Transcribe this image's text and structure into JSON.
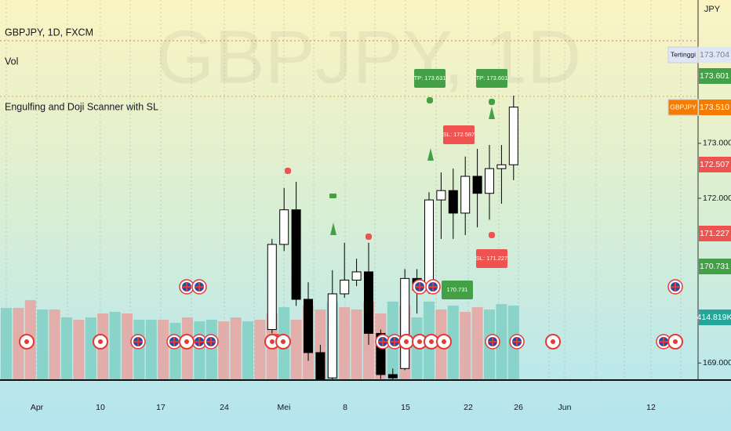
{
  "header": {
    "symbol": "GBPJPY, 1D, FXCM",
    "volume_indicator": "Vol",
    "indicator": "Engulfing and Doji Scanner with SL",
    "watermark": "GBPJPY, 1D"
  },
  "chart_data": {
    "type": "candlestick",
    "candles": [
      {
        "o": 169.61,
        "h": 171.26,
        "l": 169.54,
        "c": 171.16
      },
      {
        "o": 171.16,
        "h": 172.19,
        "l": 171.04,
        "c": 171.79
      },
      {
        "o": 171.79,
        "h": 172.3,
        "l": 170.04,
        "c": 170.16
      },
      {
        "o": 170.16,
        "h": 170.47,
        "l": 169.04,
        "c": 169.19
      },
      {
        "o": 169.19,
        "h": 169.33,
        "l": 168.69,
        "c": 168.71
      },
      {
        "o": 168.73,
        "h": 170.69,
        "l": 168.69,
        "c": 170.26
      },
      {
        "o": 170.26,
        "h": 171.19,
        "l": 170.19,
        "c": 170.51
      },
      {
        "o": 170.51,
        "h": 170.9,
        "l": 170.4,
        "c": 170.66
      },
      {
        "o": 170.66,
        "h": 171.19,
        "l": 169.33,
        "c": 169.54
      },
      {
        "o": 169.54,
        "h": 169.61,
        "l": 168.71,
        "c": 168.79
      },
      {
        "o": 168.79,
        "h": 168.9,
        "l": 168.69,
        "c": 168.73
      },
      {
        "o": 168.9,
        "h": 170.71,
        "l": 168.87,
        "c": 170.54
      },
      {
        "o": 170.54,
        "h": 170.71,
        "l": 169.9,
        "c": 170.33
      },
      {
        "o": 170.33,
        "h": 172.11,
        "l": 170.26,
        "c": 171.97
      },
      {
        "o": 171.97,
        "h": 172.47,
        "l": 171.26,
        "c": 172.14
      },
      {
        "o": 172.14,
        "h": 172.54,
        "l": 171.26,
        "c": 171.73
      },
      {
        "o": 171.73,
        "h": 172.76,
        "l": 171.33,
        "c": 172.4
      },
      {
        "o": 172.4,
        "h": 172.9,
        "l": 171.47,
        "c": 172.09
      },
      {
        "o": 172.09,
        "h": 172.97,
        "l": 171.61,
        "c": 172.54
      },
      {
        "o": 172.54,
        "h": 172.97,
        "l": 171.9,
        "c": 172.61
      },
      {
        "o": 172.61,
        "h": 173.87,
        "l": 172.33,
        "c": 173.66
      }
    ],
    "up_color": "#ffffff",
    "down_color": "#000000",
    "ylim": [
      168.69,
      175.61
    ],
    "yticks": [
      {
        "value": 173,
        "label": "173.000"
      },
      {
        "value": 172,
        "label": "172.000"
      },
      {
        "value": 169,
        "label": "169.000"
      }
    ],
    "volume": {
      "values": [
        402,
        402,
        445,
        393,
        393,
        349,
        336,
        349,
        371,
        380,
        371,
        336,
        336,
        336,
        319,
        349,
        327,
        336,
        327,
        349,
        327,
        336,
        371,
        406,
        336,
        415,
        393,
        437,
        406,
        393,
        437,
        371,
        437,
        415,
        349,
        437,
        393,
        415,
        380,
        406,
        393,
        423,
        415
      ],
      "colors": [
        "#7fcfc4",
        "#e8a3a0",
        "#e8a3a0",
        "#7fcfc4",
        "#e8a3a0",
        "#7fcfc4",
        "#e8a3a0",
        "#7fcfc4",
        "#e8a3a0",
        "#7fcfc4",
        "#e8a3a0",
        "#7fcfc4",
        "#7fcfc4",
        "#e8a3a0",
        "#7fcfc4",
        "#e8a3a0",
        "#7fcfc4",
        "#7fcfc4",
        "#e8a3a0",
        "#e8a3a0",
        "#7fcfc4",
        "#e8a3a0",
        "#e8a3a0",
        "#7fcfc4",
        "#e8a3a0",
        "#e8a3a0",
        "#e8a3a0",
        "#7fcfc4",
        "#e8a3a0",
        "#e8a3a0",
        "#e8a3a0",
        "#e8a3a0",
        "#7fcfc4",
        "#e8a3a0",
        "#7fcfc4",
        "#7fcfc4",
        "#e8a3a0",
        "#7fcfc4",
        "#e8a3a0",
        "#e8a3a0",
        "#7fcfc4",
        "#7fcfc4",
        "#7fcfc4"
      ],
      "vlim": [
        0,
        2117
      ]
    },
    "x_labels": [
      "Apr",
      "10",
      "17",
      "24",
      "Mei",
      "8",
      "15",
      "22",
      "26",
      "Jun",
      "12"
    ],
    "currency": "JPY",
    "price_labels": [
      {
        "label": "173.704",
        "color": "#dfe6f5",
        "text_color": "#7b8190",
        "tag": "Tertinggi"
      },
      {
        "label": "173.601",
        "color": "#43a047",
        "text_color": "#ffffff"
      },
      {
        "label": "173.510",
        "color": "#f57c00",
        "text_color": "#ffffff",
        "tag": "GBPJPY"
      },
      {
        "label": "172.507",
        "color": "#ef5350",
        "text_color": "#ffffff"
      },
      {
        "label": "171.227",
        "color": "#ef5350",
        "text_color": "#ffffff"
      },
      {
        "label": "170.731",
        "color": "#43a047",
        "text_color": "#ffffff"
      },
      {
        "label": "414.819K",
        "color": "#26a69a",
        "text_color": "#ffffff"
      }
    ],
    "annotations": [
      {
        "text": "TP: 173.631",
        "color": "#43a047"
      },
      {
        "text": "TP: 173.601",
        "color": "#43a047"
      },
      {
        "text": "SL: 172.587",
        "color": "#ef5350"
      },
      {
        "text": "SL: 171.227",
        "color": "#ef5350"
      },
      {
        "text": "170.731",
        "color": "#43a047"
      }
    ]
  }
}
